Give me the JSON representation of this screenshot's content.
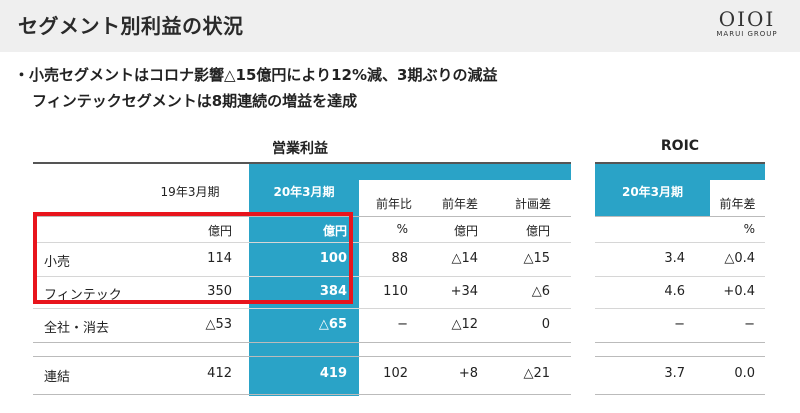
{
  "header": {
    "title": "セグメント別利益の状況",
    "logo_mark": "OIOI",
    "logo_sub": "MARUI GROUP"
  },
  "bullets": {
    "line1": "・小売セグメントはコロナ影響△15億円により12%減、3期ぶりの減益",
    "line2": "フィンテックセグメントは8期連続の増益を達成"
  },
  "table": {
    "section_op": "営業利益",
    "section_roic": "ROIC",
    "columns": {
      "prev": "19年3月期",
      "curr": "20年3月期",
      "yoy_ratio": "前年比",
      "yoy_diff": "前年差",
      "plan_diff": "計画差",
      "roic_curr": "20年3月期",
      "roic_diff": "前年差"
    },
    "units": {
      "prev": "億円",
      "curr": "億円",
      "yoy_ratio": "%",
      "yoy_diff": "億円",
      "plan_diff": "億円",
      "roic_diff": "%"
    },
    "rows": [
      {
        "label": "小売",
        "prev": "114",
        "curr": "100",
        "yoy_ratio": "88",
        "yoy_diff": "△14",
        "plan_diff": "△15",
        "roic": "3.4",
        "roic_diff": "△0.4"
      },
      {
        "label": "フィンテック",
        "prev": "350",
        "curr": "384",
        "yoy_ratio": "110",
        "yoy_diff": "+34",
        "plan_diff": "△6",
        "roic": "4.6",
        "roic_diff": "+0.4"
      },
      {
        "label": "全社・消去",
        "prev": "△53",
        "curr": "△65",
        "yoy_ratio": "−",
        "yoy_diff": "△12",
        "plan_diff": "0",
        "roic": "−",
        "roic_diff": "−"
      },
      {
        "label": "連結",
        "prev": "412",
        "curr": "419",
        "yoy_ratio": "102",
        "yoy_diff": "+8",
        "plan_diff": "△21",
        "roic": "3.7",
        "roic_diff": "0.0"
      }
    ]
  },
  "colors": {
    "accent": "#2aa3c7",
    "highlight": "#e8141c"
  }
}
